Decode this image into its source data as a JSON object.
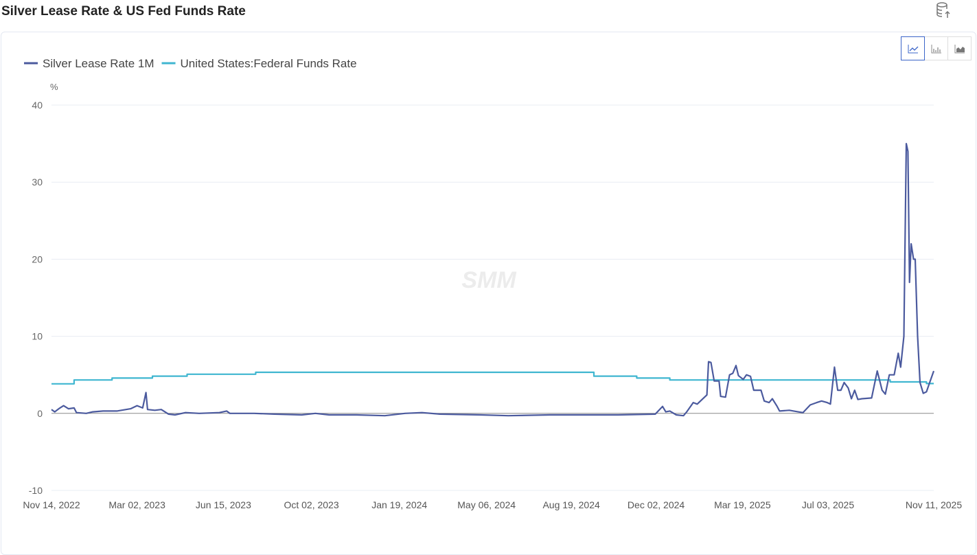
{
  "title": "Silver Lease Rate & US Fed Funds Rate",
  "toolbar": {
    "icons": [
      "database-export-icon",
      "line-chart-icon",
      "bar-chart-icon",
      "area-chart-icon"
    ],
    "active": "line"
  },
  "watermark": "SMM",
  "chart_data": {
    "type": "line",
    "x_unit": "days since Nov 14, 2022",
    "xlim": [
      0,
      1093
    ],
    "ylim": [
      -10,
      40
    ],
    "ylabel": "%",
    "yticks": [
      -10,
      0,
      10,
      20,
      30,
      40
    ],
    "xticks": [
      {
        "day": 0,
        "label": "Nov 14, 2022"
      },
      {
        "day": 106,
        "label": "Mar 02, 2023"
      },
      {
        "day": 213,
        "label": "Jun 15, 2023"
      },
      {
        "day": 322,
        "label": "Oct 02, 2023"
      },
      {
        "day": 431,
        "label": "Jan 19, 2024"
      },
      {
        "day": 539,
        "label": "May 06, 2024"
      },
      {
        "day": 644,
        "label": "Aug 19, 2024"
      },
      {
        "day": 749,
        "label": "Dec 02, 2024"
      },
      {
        "day": 856,
        "label": "Mar 19, 2025"
      },
      {
        "day": 962,
        "label": "Jul 03, 2025"
      },
      {
        "day": 1093,
        "label": "Nov 11, 2025"
      }
    ],
    "grid": true,
    "legend_position": "top-left",
    "series": [
      {
        "name": "Silver Lease Rate 1M",
        "color": "#4b5a9e",
        "points": [
          [
            0,
            0.5
          ],
          [
            4,
            0.2
          ],
          [
            9,
            0.6
          ],
          [
            15,
            1.0
          ],
          [
            21,
            0.6
          ],
          [
            28,
            0.7
          ],
          [
            31,
            0.1
          ],
          [
            43,
            0
          ],
          [
            51,
            0.2
          ],
          [
            64,
            0.3
          ],
          [
            81,
            0.3
          ],
          [
            98,
            0.6
          ],
          [
            106,
            1.0
          ],
          [
            113,
            0.7
          ],
          [
            117,
            2.7
          ],
          [
            119,
            0.5
          ],
          [
            128,
            0.4
          ],
          [
            136,
            0.5
          ],
          [
            145,
            -0.1
          ],
          [
            153,
            -0.2
          ],
          [
            166,
            0.1
          ],
          [
            183,
            0
          ],
          [
            208,
            0.1
          ],
          [
            217,
            0.3
          ],
          [
            221,
            0
          ],
          [
            251,
            0
          ],
          [
            276,
            -0.1
          ],
          [
            310,
            -0.2
          ],
          [
            327,
            0
          ],
          [
            344,
            -0.2
          ],
          [
            378,
            -0.2
          ],
          [
            413,
            -0.3
          ],
          [
            438,
            0
          ],
          [
            459,
            0.1
          ],
          [
            481,
            -0.1
          ],
          [
            532,
            -0.2
          ],
          [
            566,
            -0.3
          ],
          [
            617,
            -0.2
          ],
          [
            659,
            -0.2
          ],
          [
            702,
            -0.2
          ],
          [
            748,
            -0.1
          ],
          [
            757,
            0.9
          ],
          [
            761,
            0.2
          ],
          [
            766,
            0.3
          ],
          [
            774,
            -0.2
          ],
          [
            783,
            -0.3
          ],
          [
            787,
            0.2
          ],
          [
            795,
            1.4
          ],
          [
            800,
            1.2
          ],
          [
            812,
            2.4
          ],
          [
            814,
            6.7
          ],
          [
            817,
            6.6
          ],
          [
            821,
            4.2
          ],
          [
            827,
            4.2
          ],
          [
            829,
            2.2
          ],
          [
            835,
            2.1
          ],
          [
            840,
            5.0
          ],
          [
            844,
            5.2
          ],
          [
            848,
            6.2
          ],
          [
            851,
            4.9
          ],
          [
            857,
            4.4
          ],
          [
            861,
            5.0
          ],
          [
            866,
            4.8
          ],
          [
            870,
            3.0
          ],
          [
            879,
            3.0
          ],
          [
            883,
            1.6
          ],
          [
            889,
            1.4
          ],
          [
            893,
            1.9
          ],
          [
            899,
            0.9
          ],
          [
            902,
            0.3
          ],
          [
            914,
            0.4
          ],
          [
            925,
            0.2
          ],
          [
            931,
            0.1
          ],
          [
            940,
            1.1
          ],
          [
            948,
            1.4
          ],
          [
            954,
            1.6
          ],
          [
            961,
            1.4
          ],
          [
            965,
            1.2
          ],
          [
            970,
            6.0
          ],
          [
            974,
            3.0
          ],
          [
            978,
            3.0
          ],
          [
            982,
            4.0
          ],
          [
            987,
            3.3
          ],
          [
            991,
            1.9
          ],
          [
            995,
            3.0
          ],
          [
            999,
            1.8
          ],
          [
            1004,
            1.9
          ],
          [
            1016,
            2.0
          ],
          [
            1023,
            5.5
          ],
          [
            1029,
            3.0
          ],
          [
            1033,
            2.5
          ],
          [
            1038,
            5.0
          ],
          [
            1044,
            5.0
          ],
          [
            1049,
            7.8
          ],
          [
            1052,
            6.0
          ],
          [
            1056,
            10
          ],
          [
            1059,
            35
          ],
          [
            1061,
            34
          ],
          [
            1063,
            17
          ],
          [
            1065,
            22
          ],
          [
            1068,
            20
          ],
          [
            1070,
            20
          ],
          [
            1073,
            10
          ],
          [
            1076,
            4
          ],
          [
            1080,
            2.6
          ],
          [
            1084,
            2.8
          ],
          [
            1088,
            4
          ],
          [
            1093,
            5.5
          ]
        ]
      },
      {
        "name": "United States:Federal Funds Rate",
        "color": "#3fb6d0",
        "points": [
          [
            0,
            3.83
          ],
          [
            28,
            3.83
          ],
          [
            28,
            4.33
          ],
          [
            75,
            4.33
          ],
          [
            75,
            4.58
          ],
          [
            125,
            4.58
          ],
          [
            125,
            4.83
          ],
          [
            168,
            4.83
          ],
          [
            168,
            5.08
          ],
          [
            253,
            5.08
          ],
          [
            253,
            5.33
          ],
          [
            672,
            5.33
          ],
          [
            672,
            4.83
          ],
          [
            725,
            4.83
          ],
          [
            725,
            4.58
          ],
          [
            766,
            4.58
          ],
          [
            766,
            4.33
          ],
          [
            1039,
            4.33
          ],
          [
            1039,
            4.08
          ],
          [
            1084,
            4.08
          ],
          [
            1084,
            3.87
          ],
          [
            1093,
            3.87
          ]
        ]
      }
    ]
  }
}
